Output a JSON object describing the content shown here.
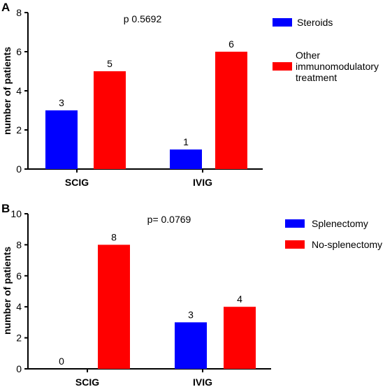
{
  "chart_data": [
    {
      "type": "bar",
      "panel_label": "A",
      "categories": [
        "SCIG",
        "IVIG"
      ],
      "series": [
        {
          "name": "Steroids",
          "color": "#0000ff",
          "values": [
            3,
            1
          ]
        },
        {
          "name": "Other immunomodulatory treatment",
          "name_lines": [
            "Other",
            "immunomodulatory",
            "treatment"
          ],
          "color": "#ff0000",
          "values": [
            5,
            6
          ]
        }
      ],
      "ylabel": "number of patients",
      "ylim": [
        0,
        8
      ],
      "yticks": [
        0,
        2,
        4,
        6,
        8
      ],
      "annotation": "p 0.5692",
      "legend_position": "right",
      "grid": false
    },
    {
      "type": "bar",
      "panel_label": "B",
      "categories": [
        "SCIG",
        "IVIG"
      ],
      "series": [
        {
          "name": "Splenectomy",
          "name_lines": [
            "Splenectomy"
          ],
          "color": "#0000ff",
          "values": [
            0,
            3
          ]
        },
        {
          "name": "No-splenectomy",
          "name_lines": [
            "No-splenectomy"
          ],
          "color": "#ff0000",
          "values": [
            8,
            4
          ]
        }
      ],
      "ylabel": "number of patients",
      "ylim": [
        0,
        10
      ],
      "yticks": [
        0,
        2,
        4,
        6,
        8,
        10
      ],
      "annotation": "p= 0.0769",
      "legend_position": "right",
      "grid": false
    }
  ]
}
